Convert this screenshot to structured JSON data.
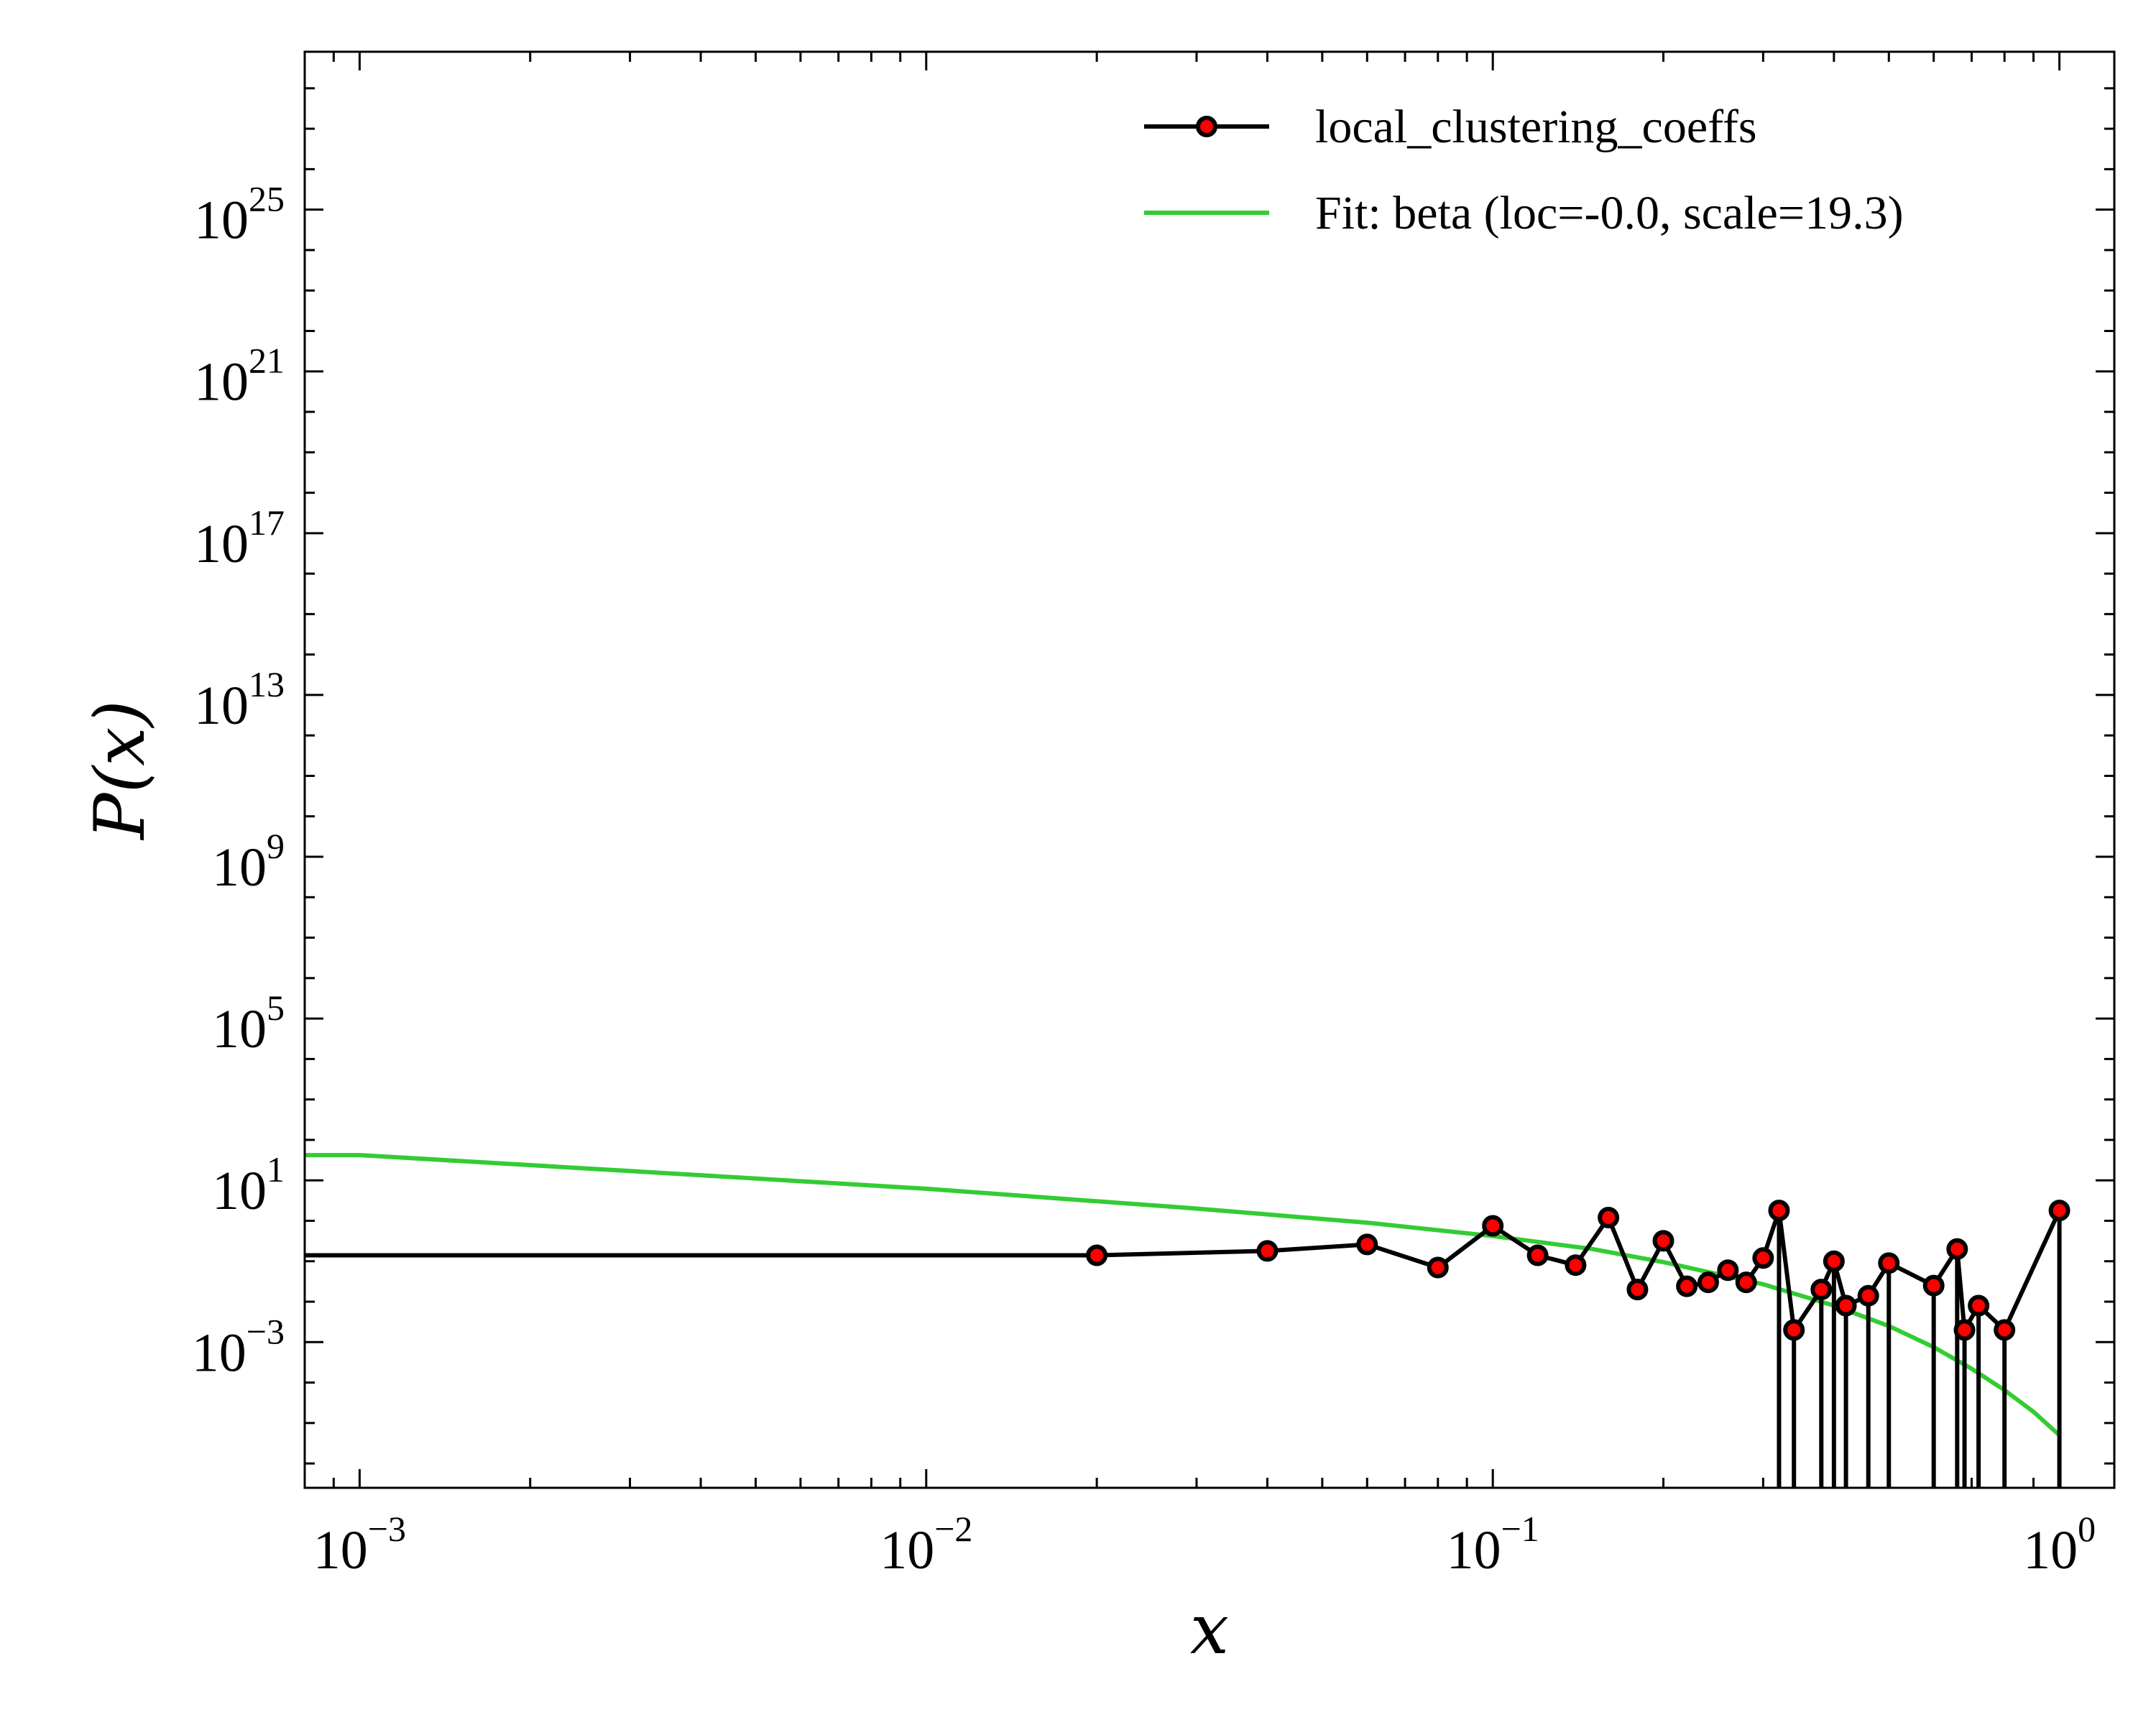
{
  "chart_data": {
    "type": "line",
    "xlabel": "x",
    "ylabel": "P(x)",
    "xscale": "log",
    "yscale": "log",
    "xlim": [
      0.0008,
      1.25
    ],
    "ylim": [
      2.5e-07,
      8e+28
    ],
    "grid": false,
    "legend_position": "top-right",
    "xticks": [
      {
        "value": 0.001,
        "base": "10",
        "exp": "−3"
      },
      {
        "value": 0.01,
        "base": "10",
        "exp": "−2"
      },
      {
        "value": 0.1,
        "base": "10",
        "exp": "−1"
      },
      {
        "value": 1,
        "base": "10",
        "exp": "0"
      }
    ],
    "yticks": [
      {
        "value": 0.001,
        "base": "10",
        "exp": "−3"
      },
      {
        "value": 10.0,
        "base": "10",
        "exp": "1"
      },
      {
        "value": 100000.0,
        "base": "10",
        "exp": "5"
      },
      {
        "value": 1000000000.0,
        "base": "10",
        "exp": "9"
      },
      {
        "value": 10000000000000.0,
        "base": "10",
        "exp": "13"
      },
      {
        "value": 1e+17,
        "base": "10",
        "exp": "17"
      },
      {
        "value": 1e+21,
        "base": "10",
        "exp": "21"
      },
      {
        "value": 1e+25,
        "base": "10",
        "exp": "25"
      }
    ],
    "series": [
      {
        "name": "local_clustering_coeffs",
        "color": "#000000",
        "marker_color": "#ff0000",
        "marker": "circle",
        "x": [
          0.0008,
          0.02,
          0.04,
          0.06,
          0.08,
          0.1,
          0.12,
          0.14,
          0.16,
          0.18,
          0.2,
          0.22,
          0.24,
          0.26,
          0.28,
          0.3,
          0.32,
          0.34,
          0.38,
          0.4,
          0.42,
          0.46,
          0.5,
          0.6,
          0.66,
          0.68,
          0.72,
          0.8,
          1.0
        ],
        "y": [
          0.14,
          0.14,
          0.18,
          0.26,
          0.07,
          0.75,
          0.14,
          0.08,
          1.2,
          0.02,
          0.32,
          0.024,
          0.03,
          0.06,
          0.03,
          0.12,
          1.8,
          0.002,
          0.02,
          0.1,
          0.008,
          0.014,
          0.09,
          0.025,
          0.2,
          0.002,
          0.008,
          0.002,
          1.8
        ]
      },
      {
        "name": "Fit: beta (loc=-0.0, scale=19.3)",
        "color": "#33cc33",
        "x": [
          0.0008,
          0.001,
          0.003,
          0.01,
          0.03,
          0.06,
          0.1,
          0.15,
          0.2,
          0.3,
          0.4,
          0.5,
          0.6,
          0.7,
          0.8,
          0.9,
          1.0
        ],
        "y": [
          42,
          42,
          17,
          6.2,
          2.0,
          0.9,
          0.42,
          0.2,
          0.095,
          0.027,
          0.008,
          0.0025,
          0.00075,
          0.00022,
          6.5e-05,
          1.9e-05,
          5e-06
        ]
      }
    ]
  }
}
